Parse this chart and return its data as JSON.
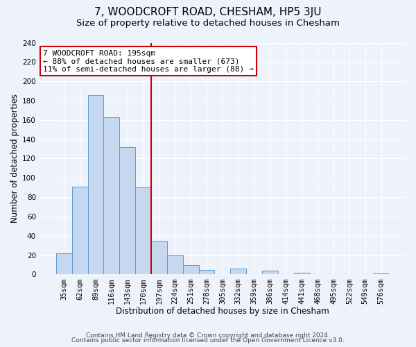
{
  "title": "7, WOODCROFT ROAD, CHESHAM, HP5 3JU",
  "subtitle": "Size of property relative to detached houses in Chesham",
  "bar_labels": [
    "35sqm",
    "62sqm",
    "89sqm",
    "116sqm",
    "143sqm",
    "170sqm",
    "197sqm",
    "224sqm",
    "251sqm",
    "278sqm",
    "305sqm",
    "332sqm",
    "359sqm",
    "386sqm",
    "414sqm",
    "441sqm",
    "468sqm",
    "495sqm",
    "522sqm",
    "549sqm",
    "576sqm"
  ],
  "bar_heights": [
    22,
    91,
    186,
    163,
    132,
    90,
    35,
    20,
    10,
    5,
    0,
    6,
    0,
    4,
    0,
    2,
    0,
    0,
    0,
    0,
    1
  ],
  "bar_color": "#c5d8f0",
  "bar_edge_color": "#5b9bd5",
  "xlabel": "Distribution of detached houses by size in Chesham",
  "ylabel": "Number of detached properties",
  "ylim": [
    0,
    240
  ],
  "yticks": [
    0,
    20,
    40,
    60,
    80,
    100,
    120,
    140,
    160,
    180,
    200,
    220,
    240
  ],
  "vline_idx": 6,
  "vline_color": "#cc0000",
  "annotation_title": "7 WOODCROFT ROAD: 195sqm",
  "annotation_line1": "← 88% of detached houses are smaller (673)",
  "annotation_line2": "11% of semi-detached houses are larger (88) →",
  "annotation_box_color": "#ffffff",
  "annotation_box_edge": "#cc0000",
  "footer1": "Contains HM Land Registry data © Crown copyright and database right 2024.",
  "footer2": "Contains public sector information licensed under the Open Government Licence v3.0.",
  "bg_color": "#eef2fb",
  "grid_color": "#ffffff",
  "title_fontsize": 11,
  "subtitle_fontsize": 9.5,
  "axis_label_fontsize": 8.5,
  "tick_fontsize": 7.5,
  "footer_fontsize": 6.5,
  "ann_fontsize": 8
}
